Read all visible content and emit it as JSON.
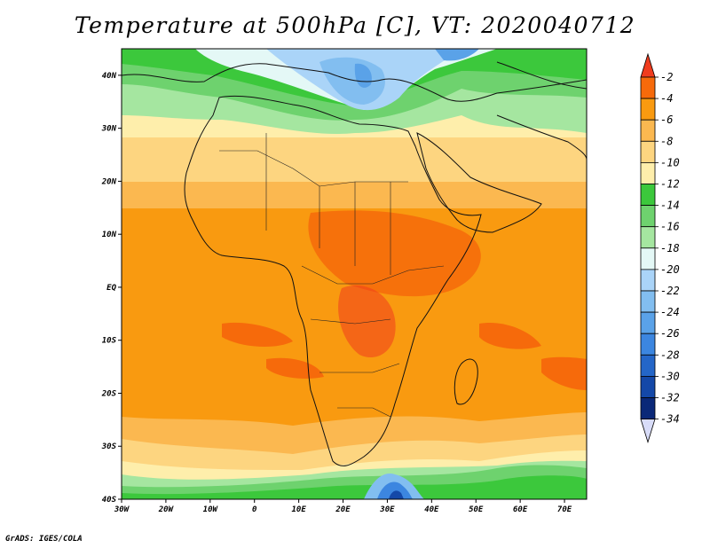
{
  "title": "Temperature at 500hPa [C], VT: 2020040712",
  "credit": "GrADS: IGES/COLA",
  "map": {
    "lon_range": [
      -30,
      75
    ],
    "lat_range": [
      -40,
      45
    ],
    "lon_ticks": [
      {
        "lon": -30,
        "label": "30W"
      },
      {
        "lon": -20,
        "label": "20W"
      },
      {
        "lon": -10,
        "label": "10W"
      },
      {
        "lon": 0,
        "label": "0"
      },
      {
        "lon": 10,
        "label": "10E"
      },
      {
        "lon": 20,
        "label": "20E"
      },
      {
        "lon": 30,
        "label": "30E"
      },
      {
        "lon": 40,
        "label": "40E"
      },
      {
        "lon": 50,
        "label": "50E"
      },
      {
        "lon": 60,
        "label": "60E"
      },
      {
        "lon": 70,
        "label": "70E"
      }
    ],
    "lat_ticks": [
      {
        "lat": 40,
        "label": "40N"
      },
      {
        "lat": 30,
        "label": "30N"
      },
      {
        "lat": 20,
        "label": "20N"
      },
      {
        "lat": 10,
        "label": "10N"
      },
      {
        "lat": 0,
        "label": "EQ"
      },
      {
        "lat": -10,
        "label": "10S"
      },
      {
        "lat": -20,
        "label": "20S"
      },
      {
        "lat": -30,
        "label": "30S"
      },
      {
        "lat": -40,
        "label": "40S"
      }
    ]
  },
  "colorbar": {
    "labels": [
      "-2",
      "-4",
      "-6",
      "-8",
      "-10",
      "-12",
      "-14",
      "-16",
      "-18",
      "-20",
      "-22",
      "-24",
      "-26",
      "-28",
      "-30",
      "-32",
      "-34"
    ],
    "colors": [
      "#f03c1e",
      "#f66a0b",
      "#f99a10",
      "#fbb850",
      "#fdd580",
      "#feeeab",
      "#3cc83c",
      "#6ed26e",
      "#a5e6a0",
      "#e4f8f6",
      "#aad4f8",
      "#82bef0",
      "#5aa2e8",
      "#3c86e0",
      "#2466c8",
      "#1448a8",
      "#0a2878",
      "#d8dcf8"
    ]
  }
}
